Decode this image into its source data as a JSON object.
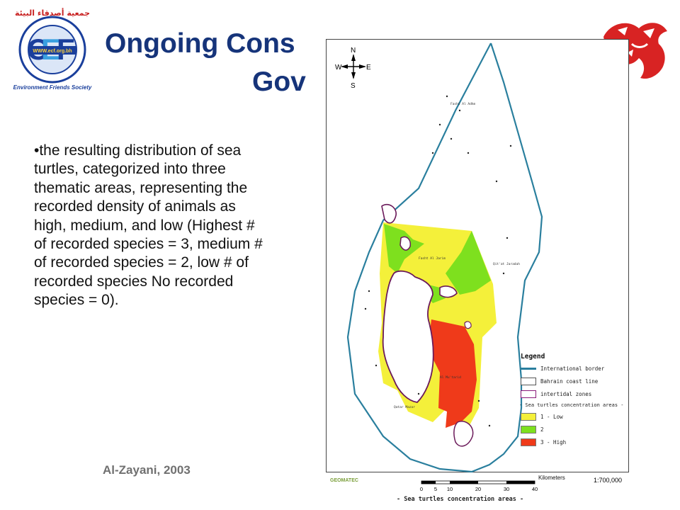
{
  "header": {
    "title_line1": "Ongoing Cons",
    "title_line2": "Gov",
    "logo_url": "WWW.ecf.org.bh",
    "logo_society": "Environment Friends Society",
    "logo_arabic": "جمعية أصدقاء البيئة"
  },
  "body": {
    "paragraph": "•the resulting distribution of sea turtles, categorized into three thematic areas, representing the recorded density of animals as high, medium, and low (Highest # of recorded species = 3, medium # of recorded species = 2,  low # of recorded species No recorded species = 0)."
  },
  "credit": "Al-Zayani, 2003",
  "map": {
    "compass": {
      "n": "N",
      "s": "S",
      "e": "E",
      "w": "W"
    },
    "legend": {
      "title": "Legend",
      "items": [
        {
          "label": "International border",
          "color": "#2a7f9e"
        },
        {
          "label": "Bahrain  coast line",
          "color": "#555555"
        },
        {
          "label": "intertidal  zones",
          "color": "#8a1a7a"
        }
      ],
      "section_title": "- Sea turtles concentration areas -",
      "classes": [
        {
          "label": "1 - Low",
          "color": "#f4f03a"
        },
        {
          "label": "2",
          "color": "#7ee01e"
        },
        {
          "label": "3 - High",
          "color": "#ef3a1a"
        }
      ]
    },
    "scale": {
      "unit_label": "Kilometers",
      "ticks": [
        "0",
        "5",
        "10",
        "20",
        "30",
        "40"
      ],
      "ratio": "1:700,000"
    },
    "publisher": "GEOMATEC",
    "footer_caption": "- Sea turtles concentration areas -",
    "place_labels": [
      "Fasht Al Adhm",
      "Qit'at Jaradah",
      "Fasht Al Jarim",
      "Qatar Mazar",
      "Al Mu'tarid"
    ]
  }
}
